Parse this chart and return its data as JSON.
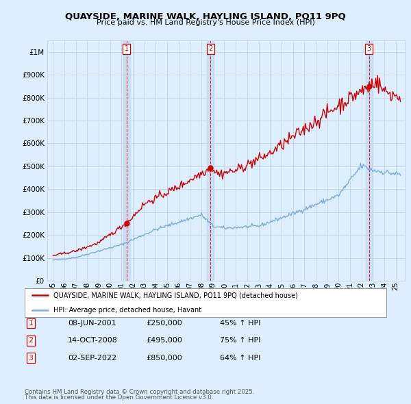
{
  "title": "QUAYSIDE, MARINE WALK, HAYLING ISLAND, PO11 9PQ",
  "subtitle": "Price paid vs. HM Land Registry's House Price Index (HPI)",
  "legend_line1": "QUAYSIDE, MARINE WALK, HAYLING ISLAND, PO11 9PQ (detached house)",
  "legend_line2": "HPI: Average price, detached house, Havant",
  "transactions": [
    {
      "label": "1",
      "date": "08-JUN-2001",
      "price": 250000,
      "pct": "45% ↑ HPI",
      "x": 2001.44
    },
    {
      "label": "2",
      "date": "14-OCT-2008",
      "price": 495000,
      "pct": "75% ↑ HPI",
      "x": 2008.79
    },
    {
      "label": "3",
      "date": "02-SEP-2022",
      "price": 850000,
      "pct": "64% ↑ HPI",
      "x": 2022.67
    }
  ],
  "footer_line1": "Contains HM Land Registry data © Crown copyright and database right 2025.",
  "footer_line2": "This data is licensed under the Open Government Licence v3.0.",
  "red_color": "#cc0000",
  "blue_color": "#7aacdc",
  "grid_color": "#c8d8e8",
  "background_color": "#ddeeff",
  "plot_bg_color": "#ddeeff",
  "shade_color": "#c5d8ee",
  "ylim": [
    0,
    1050000
  ],
  "xlim": [
    1994.5,
    2025.8
  ]
}
